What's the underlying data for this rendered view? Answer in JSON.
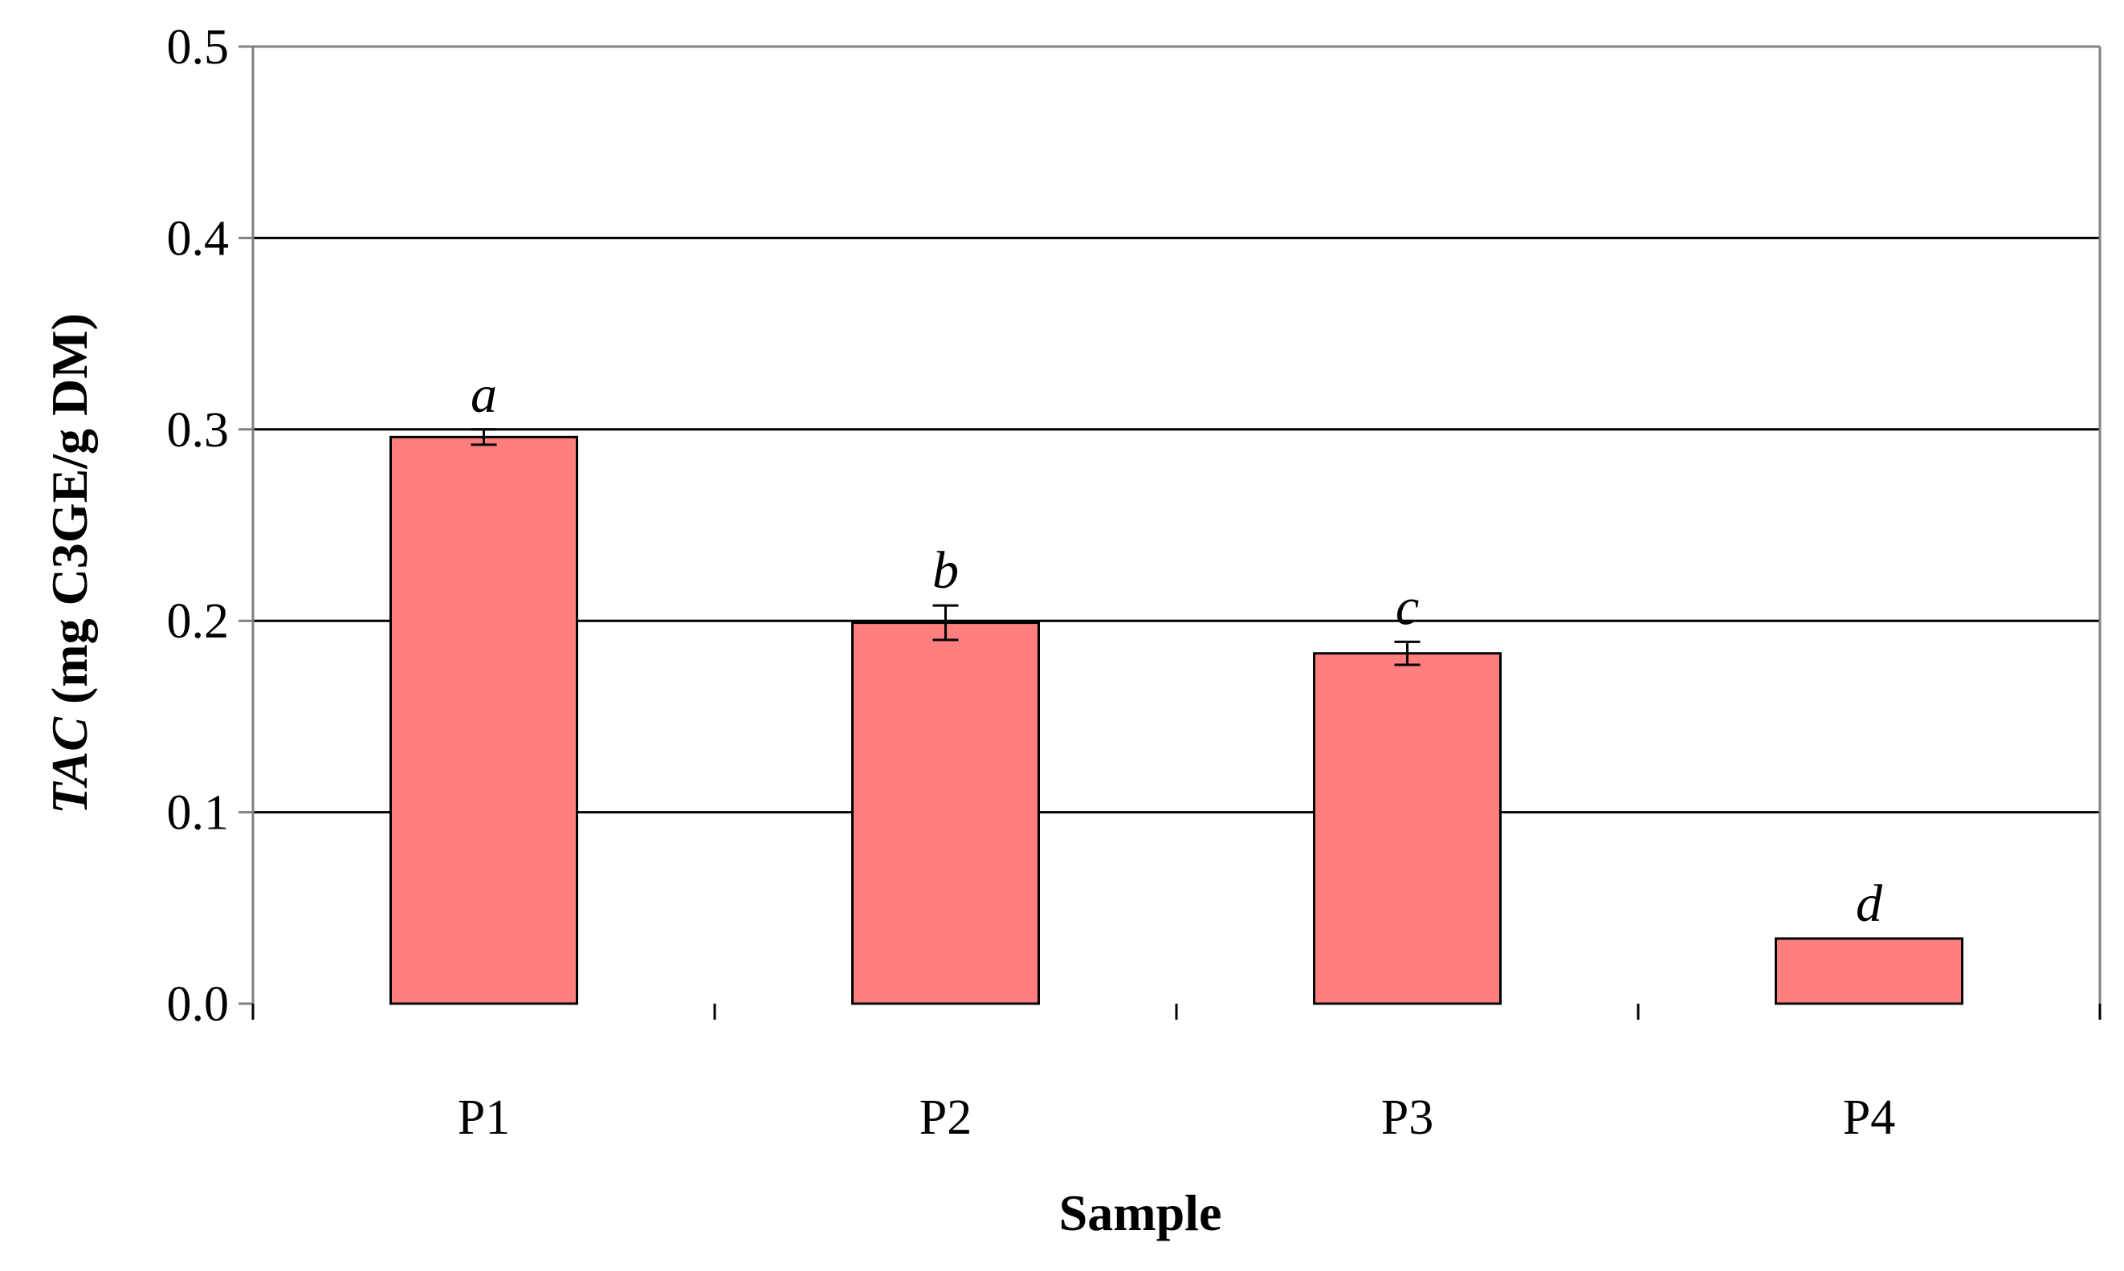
{
  "chart_data": {
    "type": "bar",
    "categories": [
      "P1",
      "P2",
      "P3",
      "P4"
    ],
    "values": [
      0.296,
      0.199,
      0.183,
      0.034
    ],
    "errors": [
      0.004,
      0.009,
      0.006,
      0.0
    ],
    "significance_letters": [
      "a",
      "b",
      "c",
      "d"
    ],
    "xlabel": "Sample",
    "ylabel_italic": "TAC",
    "ylabel_rest": " (mg C3GE/g DM)",
    "ylim": [
      0.0,
      0.5
    ],
    "yticks": [
      "0.0",
      "0.1",
      "0.2",
      "0.3",
      "0.4",
      "0.5"
    ],
    "grid": true,
    "legend": "none",
    "colors": {
      "bar_fill": "#FF7F7F",
      "bar_stroke": "#000000",
      "gridline": "#000000",
      "axis": "#808080"
    }
  }
}
